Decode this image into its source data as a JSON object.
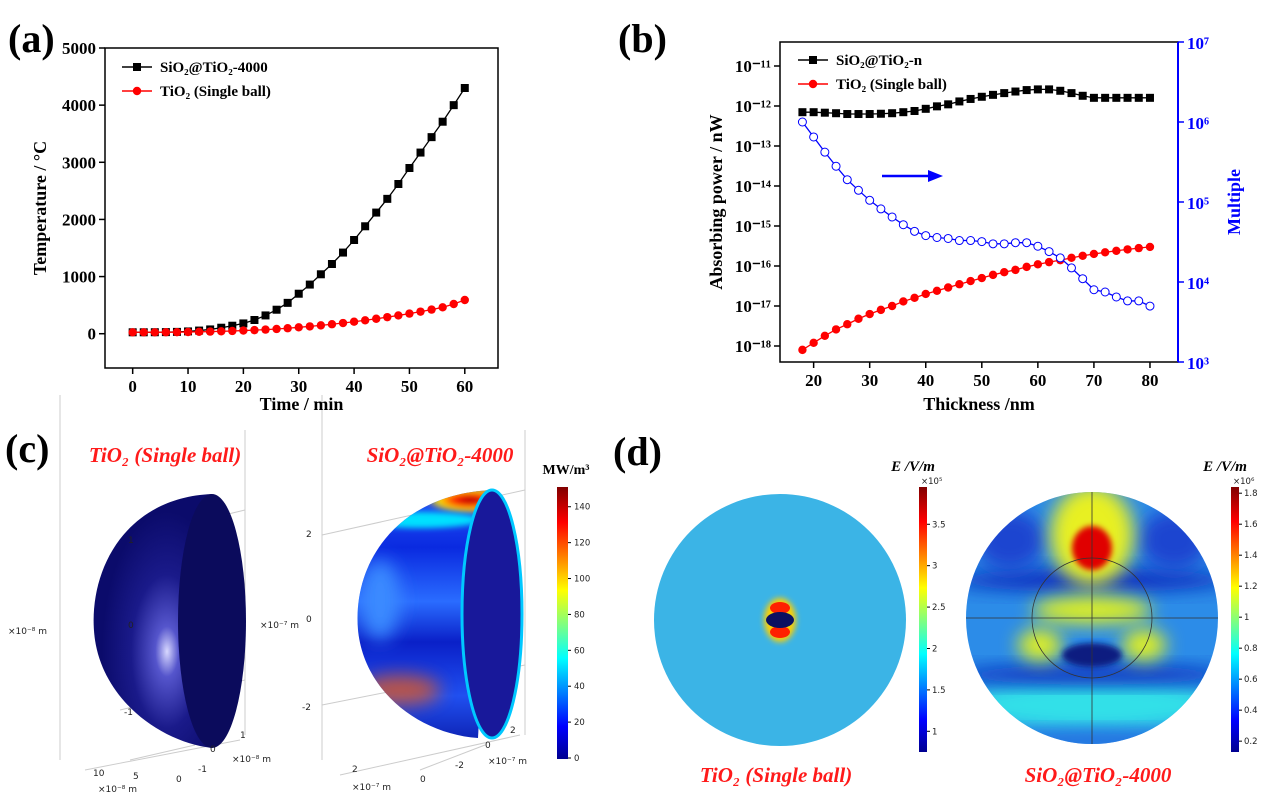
{
  "chart_data": [
    {
      "type": "line",
      "panel_label": "(a)",
      "x_label": "Time / min",
      "y_label": "Temperature / °C",
      "x": [
        0,
        2,
        4,
        6,
        8,
        10,
        12,
        14,
        16,
        18,
        20,
        22,
        24,
        26,
        28,
        30,
        32,
        34,
        36,
        38,
        40,
        42,
        44,
        46,
        48,
        50,
        52,
        54,
        56,
        58,
        60
      ],
      "series": [
        {
          "name": "SiO₂@TiO₂-4000",
          "color": "#000000",
          "marker": "square",
          "values": [
            25,
            25,
            26,
            28,
            32,
            40,
            55,
            75,
            105,
            140,
            180,
            240,
            320,
            420,
            540,
            700,
            860,
            1040,
            1220,
            1420,
            1640,
            1880,
            2120,
            2360,
            2620,
            2900,
            3170,
            3440,
            3710,
            4000,
            4300
          ]
        },
        {
          "name": "TiO₂ (Single ball)",
          "color": "#ff0000",
          "marker": "circle",
          "values": [
            25,
            25,
            25,
            26,
            27,
            30,
            33,
            37,
            42,
            48,
            55,
            63,
            72,
            83,
            96,
            112,
            128,
            146,
            166,
            187,
            210,
            235,
            262,
            290,
            320,
            352,
            386,
            422,
            462,
            520,
            590
          ]
        }
      ],
      "xlim": [
        -5,
        66
      ],
      "ylim": [
        -600,
        5000
      ],
      "xticks": [
        0,
        10,
        20,
        30,
        40,
        50,
        60
      ],
      "yticks": [
        0,
        1000,
        2000,
        3000,
        4000,
        5000
      ],
      "legend": "upper left"
    },
    {
      "type": "line",
      "panel_label": "(b)",
      "x_label": "Thickness /nm",
      "y_label": "Absorbing power / nW",
      "y2_label": "Multiple",
      "y_scale": "log",
      "y2_scale": "log",
      "y2_color": "#0000ff",
      "x": [
        18,
        20,
        22,
        24,
        26,
        28,
        30,
        32,
        34,
        36,
        38,
        40,
        42,
        44,
        46,
        48,
        50,
        52,
        54,
        56,
        58,
        60,
        62,
        64,
        66,
        68,
        70,
        72,
        74,
        76,
        78,
        80
      ],
      "series": [
        {
          "name": "SiO₂@TiO₂-n",
          "color": "#000000",
          "marker": "square",
          "values": [
            7e-13,
            7e-13,
            6.8e-13,
            6.6e-13,
            6.3e-13,
            6.3e-13,
            6.3e-13,
            6.4e-13,
            6.6e-13,
            7e-13,
            7.5e-13,
            8.5e-13,
            9.8e-13,
            1.1e-12,
            1.3e-12,
            1.5e-12,
            1.7e-12,
            1.9e-12,
            2.1e-12,
            2.3e-12,
            2.5e-12,
            2.6e-12,
            2.6e-12,
            2.4e-12,
            2.1e-12,
            1.8e-12,
            1.6e-12,
            1.6e-12,
            1.6e-12,
            1.6e-12,
            1.6e-12,
            1.6e-12
          ]
        },
        {
          "name": "TiO₂ (Single ball)",
          "color": "#ff0000",
          "marker": "circle",
          "values": [
            8e-19,
            1.2e-18,
            1.8e-18,
            2.6e-18,
            3.5e-18,
            4.8e-18,
            6.3e-18,
            8e-18,
            1e-17,
            1.3e-17,
            1.6e-17,
            2e-17,
            2.4e-17,
            2.9e-17,
            3.5e-17,
            4.2e-17,
            5e-17,
            6e-17,
            7e-17,
            8e-17,
            9.5e-17,
            1.1e-16,
            1.25e-16,
            1.4e-16,
            1.6e-16,
            1.8e-16,
            2e-16,
            2.2e-16,
            2.4e-16,
            2.6e-16,
            2.8e-16,
            3e-16
          ]
        },
        {
          "color": "#0000ff",
          "marker": "open-circle",
          "axis": "y2",
          "values": [
            1000000,
            650000,
            420000,
            280000,
            190000,
            140000,
            105000,
            82000,
            65000,
            52000,
            43000,
            38000,
            36000,
            35000,
            33000,
            33000,
            32000,
            30000,
            30000,
            31000,
            31000,
            28000,
            24000,
            20000,
            15000,
            11000,
            8000,
            7500,
            6500,
            5800,
            5800,
            5000
          ]
        }
      ],
      "xlim": [
        14,
        85
      ],
      "ylim": [
        3.98e-19,
        3.98e-11
      ],
      "y2lim": [
        1000,
        10000000
      ],
      "xticks": [
        20,
        30,
        40,
        50,
        60,
        70,
        80
      ],
      "yticks": [
        {
          "value": 1e-18,
          "label": "10⁻¹⁸"
        },
        {
          "value": 1e-17,
          "label": "10⁻¹⁷"
        },
        {
          "value": 1e-16,
          "label": "10⁻¹⁶"
        },
        {
          "value": 1e-15,
          "label": "10⁻¹⁵"
        },
        {
          "value": 1e-14,
          "label": "10⁻¹⁴"
        },
        {
          "value": 1e-13,
          "label": "10⁻¹³"
        },
        {
          "value": 1e-12,
          "label": "10⁻¹²"
        },
        {
          "value": 1e-11,
          "label": "10⁻¹¹"
        }
      ],
      "y2ticks": [
        {
          "value": 1000,
          "label": "10³"
        },
        {
          "value": 10000,
          "label": "10⁴"
        },
        {
          "value": 100000,
          "label": "10⁵"
        },
        {
          "value": 1000000,
          "label": "10⁶"
        },
        {
          "value": 10000000,
          "label": "10⁷"
        }
      ],
      "legend": "upper left"
    }
  ],
  "panels": {
    "c": {
      "label": "(c)",
      "titles": [
        "TiO₂ (Single ball)",
        "SiO₂@TiO₂-4000"
      ],
      "colorbar": {
        "unit": "MW/m³",
        "lim": [
          0,
          151
        ],
        "ticks": [
          0,
          20,
          40,
          60,
          80,
          100,
          120,
          140
        ]
      },
      "left_axis_texts": [
        "1",
        "0",
        "-1",
        "×10⁻⁸ m",
        "10",
        "5",
        "0",
        "-1",
        "0",
        "1",
        "×10⁻⁸ m",
        "×10⁻⁸ m"
      ],
      "right_axis_texts": [
        "2",
        "0",
        "-2",
        "×10⁻⁷ m",
        "2",
        "0",
        "-2",
        "0",
        "2",
        "×10⁻⁷ m",
        "×10⁻⁷ m"
      ]
    },
    "d": {
      "label": "(d)",
      "titles": [
        "TiO₂ (Single ball)",
        "SiO₂@TiO₂-4000"
      ],
      "colorbars": [
        {
          "unit": "E /V/m",
          "multiplier": "×10⁵",
          "lim": [
            0.75,
            3.95
          ],
          "ticks": [
            1,
            1.5,
            2,
            2.5,
            3,
            3.5
          ]
        },
        {
          "unit": "E /V/m",
          "multiplier": "×10⁶",
          "lim": [
            0.13,
            1.84
          ],
          "ticks": [
            0.2,
            0.4,
            0.6,
            0.8,
            1,
            1.2,
            1.4,
            1.6,
            1.8
          ]
        }
      ]
    }
  }
}
